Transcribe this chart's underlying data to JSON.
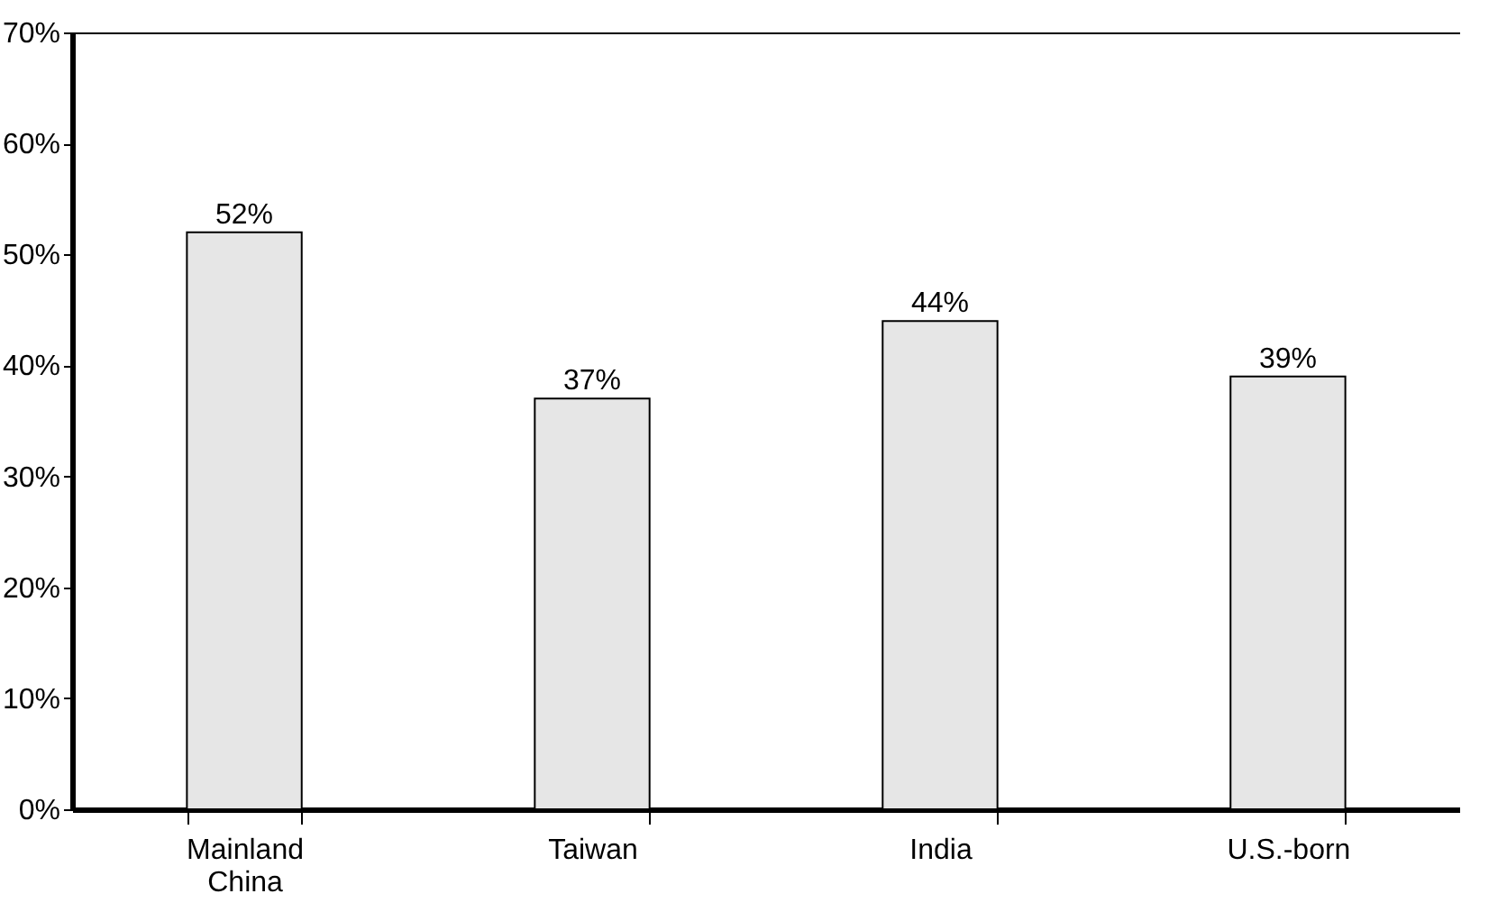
{
  "chart_data": {
    "type": "bar",
    "categories": [
      "Mainland China",
      "Taiwan",
      "India",
      "U.S.-born"
    ],
    "values": [
      52,
      37,
      44,
      39
    ],
    "color": "#e6e6e6",
    "value_labels": [
      "52%",
      "37%",
      "44%",
      "39%"
    ],
    "ylim": [
      0,
      70
    ],
    "yticks": [
      {
        "value": 0,
        "label": "0%"
      },
      {
        "value": 10,
        "label": "10%"
      },
      {
        "value": 20,
        "label": "20%"
      },
      {
        "value": 30,
        "label": "30%"
      },
      {
        "value": 40,
        "label": "40%"
      },
      {
        "value": 50,
        "label": "50%"
      },
      {
        "value": 60,
        "label": "60%"
      },
      {
        "value": 70,
        "label": "70%"
      }
    ],
    "grid": false
  }
}
